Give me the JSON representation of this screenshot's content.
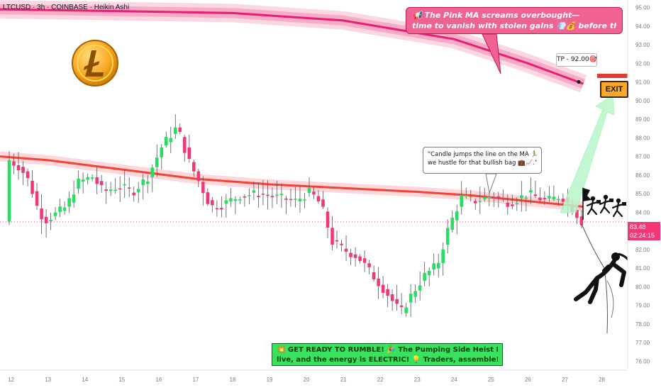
{
  "header": {
    "symbol_line": "LTCUSD · 3h · COINBASE · Heikin Ashi"
  },
  "annotations": {
    "pink_callout_line1": "📢 The Pink MA screams overbought—",
    "pink_callout_line2": "time to vanish with stolen gains 💨💰 before the crash! 💥",
    "tp_label": "TP - 92.00🎯",
    "candle_note_line1": "“Candle jumps the line on the MA 🏃‍♂️💨",
    "candle_note_line2": "we hustle for that bullish bag 💼📈.”",
    "green_box_line1": "💥 GET READY TO RUMBLE! 🎉 The Pumping Side Heist Plan is",
    "green_box_line2": "live, and the energy is ELECTRIC! 💡 Traders, assemble! 🚀",
    "exit_sign": "EXIT"
  },
  "price_tag": {
    "price": "83.48",
    "countdown": "02:24:15"
  },
  "colors": {
    "bull": "#26de62",
    "bear": "#f23677",
    "ma_pink": "#e91e78",
    "ma_red": "#f44336",
    "arrow": "#b9f6ca",
    "price_line": "#f23677"
  },
  "icons": {
    "logo": "litecoin-coin-icon",
    "thieves": "running-thieves-icon",
    "climber": "rappelling-thief-icon",
    "exit": "exit-sign-icon"
  },
  "chart_data": {
    "type": "candlestick",
    "title": "LTCUSD · 3h · COINBASE · Heikin Ashi",
    "xlabel": "",
    "ylabel": "",
    "ylim": [
      75.6,
      95.4
    ],
    "y_ticks": [
      "76.00",
      "77.00",
      "78.00",
      "79.00",
      "80.00",
      "81.00",
      "82.00",
      "83.00",
      "84.00",
      "85.00",
      "86.00",
      "87.00",
      "88.00",
      "89.00",
      "90.00",
      "91.00",
      "92.00",
      "93.00",
      "94.00",
      "95.00"
    ],
    "x_ticks": [
      {
        "label": "12",
        "day": 12
      },
      {
        "label": "13",
        "day": 13
      },
      {
        "label": "14",
        "day": 14
      },
      {
        "label": "15",
        "day": 15
      },
      {
        "label": "16",
        "day": 16
      },
      {
        "label": "17",
        "day": 17
      },
      {
        "label": "18",
        "day": 18
      },
      {
        "label": "19",
        "day": 19
      },
      {
        "label": "20",
        "day": 20
      },
      {
        "label": "21",
        "day": 21
      },
      {
        "label": "22",
        "day": 22
      },
      {
        "label": "23",
        "day": 23
      },
      {
        "label": "24",
        "day": 24
      },
      {
        "label": "25",
        "day": 25
      },
      {
        "label": "26",
        "day": 26
      },
      {
        "label": "27",
        "day": 27
      },
      {
        "label": "28",
        "day": 28
      }
    ],
    "anchors": [
      {
        "day": 11.95,
        "v": 86.8
      },
      {
        "day": 12.25,
        "v": 86.4
      },
      {
        "day": 12.5,
        "v": 85.6
      },
      {
        "day": 12.75,
        "v": 84.0
      },
      {
        "day": 12.95,
        "v": 83.6
      },
      {
        "day": 13.2,
        "v": 83.9
      },
      {
        "day": 13.5,
        "v": 84.3
      },
      {
        "day": 13.8,
        "v": 85.6
      },
      {
        "day": 14.2,
        "v": 85.9
      },
      {
        "day": 14.5,
        "v": 85.1
      },
      {
        "day": 14.9,
        "v": 85.4
      },
      {
        "day": 15.3,
        "v": 85.1
      },
      {
        "day": 15.7,
        "v": 85.9
      },
      {
        "day": 16.1,
        "v": 87.6
      },
      {
        "day": 16.5,
        "v": 88.6
      },
      {
        "day": 16.8,
        "v": 86.8
      },
      {
        "day": 17.1,
        "v": 85.6
      },
      {
        "day": 17.4,
        "v": 84.3
      },
      {
        "day": 17.7,
        "v": 84.4
      },
      {
        "day": 18.2,
        "v": 84.9
      },
      {
        "day": 18.7,
        "v": 85.0
      },
      {
        "day": 19.2,
        "v": 84.8
      },
      {
        "day": 19.7,
        "v": 84.6
      },
      {
        "day": 20.1,
        "v": 85.1
      },
      {
        "day": 20.4,
        "v": 84.4
      },
      {
        "day": 20.7,
        "v": 82.4
      },
      {
        "day": 21.0,
        "v": 82.0
      },
      {
        "day": 21.4,
        "v": 81.6
      },
      {
        "day": 21.8,
        "v": 80.6
      },
      {
        "day": 22.2,
        "v": 79.6
      },
      {
        "day": 22.55,
        "v": 78.6
      },
      {
        "day": 22.85,
        "v": 79.6
      },
      {
        "day": 23.2,
        "v": 80.6
      },
      {
        "day": 23.55,
        "v": 81.2
      },
      {
        "day": 23.85,
        "v": 83.2
      },
      {
        "day": 24.2,
        "v": 84.8
      },
      {
        "day": 24.6,
        "v": 84.6
      },
      {
        "day": 25.0,
        "v": 84.9
      },
      {
        "day": 25.5,
        "v": 84.5
      },
      {
        "day": 26.0,
        "v": 85.0
      },
      {
        "day": 26.5,
        "v": 84.6
      },
      {
        "day": 26.9,
        "v": 84.9
      },
      {
        "day": 27.25,
        "v": 84.1
      },
      {
        "day": 27.45,
        "v": 83.5
      }
    ],
    "candle_start_day": 11.95,
    "candle_end_day": 27.45,
    "candle_step_days": 0.125,
    "moving_averages": [
      {
        "points": [
          [
            11.7,
            94.9
          ],
          [
            15.0,
            94.8
          ],
          [
            18.0,
            94.7
          ],
          [
            21.0,
            94.3
          ],
          [
            24.0,
            93.3
          ],
          [
            26.0,
            92.0
          ],
          [
            27.5,
            90.9
          ]
        ]
      },
      {
        "points": [
          [
            11.7,
            87.0
          ],
          [
            13.0,
            86.8
          ],
          [
            15.0,
            86.3
          ],
          [
            17.0,
            85.8
          ],
          [
            19.0,
            85.5
          ],
          [
            21.0,
            85.3
          ],
          [
            23.0,
            85.1
          ],
          [
            24.5,
            84.9
          ],
          [
            26.0,
            84.6
          ],
          [
            27.5,
            84.3
          ]
        ]
      }
    ],
    "target_price": 92.0,
    "current_price": 83.48,
    "legend": "none",
    "grid": false
  }
}
